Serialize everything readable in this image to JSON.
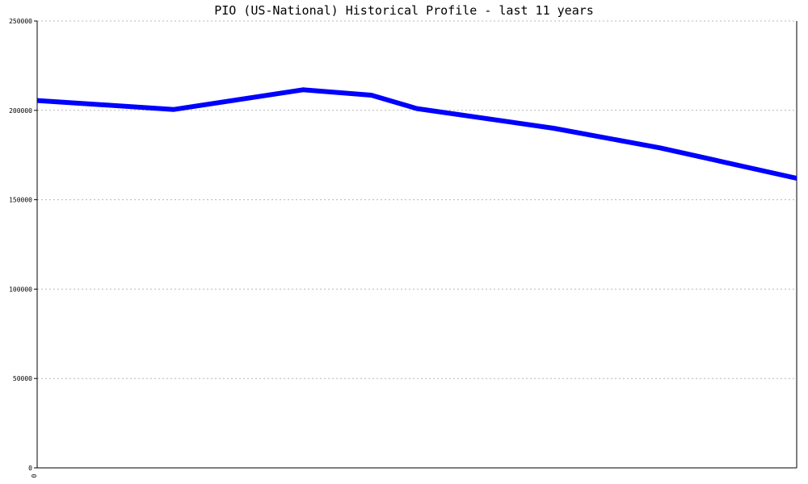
{
  "chart_data": {
    "type": "line",
    "title": "PIO (US-National) Historical Profile - last 11 years",
    "xlabel": "",
    "ylabel": "",
    "ylim": [
      0,
      250000
    ],
    "y_ticks": [
      "0",
      "50000",
      "100000",
      "150000",
      "200000",
      "250000"
    ],
    "x_tick_labels": [
      "0"
    ],
    "grid": "horizontal-dotted",
    "colors": {
      "line": "#0000ff",
      "grid": "#b8b8b8",
      "axis": "#000000"
    },
    "series": [
      {
        "x": [
          0,
          0.18,
          0.35,
          0.44,
          0.5,
          0.68,
          0.82,
          1.0
        ],
        "values": [
          205500,
          200500,
          211500,
          208500,
          201000,
          190000,
          179000,
          162000
        ]
      }
    ]
  }
}
